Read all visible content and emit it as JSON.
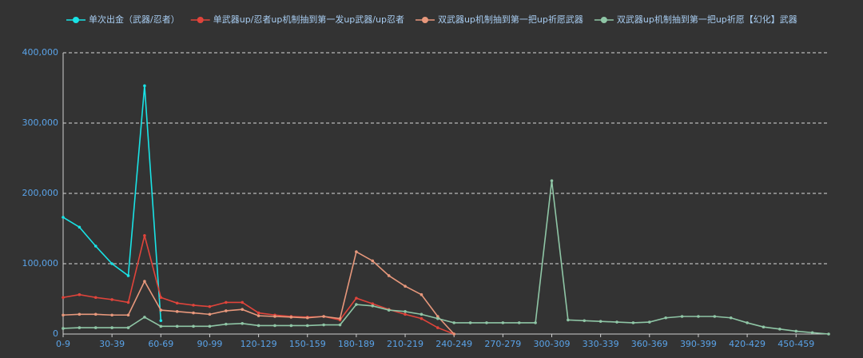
{
  "chart_data": {
    "type": "line",
    "categories": [
      "0-9",
      null,
      null,
      "30-39",
      null,
      null,
      "60-69",
      null,
      null,
      "90-99",
      null,
      null,
      "120-129",
      null,
      null,
      "150-159",
      null,
      null,
      "180-189",
      null,
      null,
      "210-219",
      null,
      null,
      "240-249",
      null,
      null,
      "270-279",
      null,
      null,
      "300-309",
      null,
      null,
      "330-339",
      null,
      null,
      "360-369",
      null,
      null,
      "390-399",
      null,
      null,
      "420-429",
      null,
      null,
      "450-459",
      null,
      null
    ],
    "series": [
      {
        "name": "单次出金（武器/忍者）",
        "color": "#19e3e6",
        "values": [
          166000,
          152000,
          125000,
          100000,
          83000,
          353000,
          19000,
          null,
          null,
          null,
          null,
          null,
          null,
          null,
          null,
          null,
          null,
          null,
          null,
          null,
          null,
          null,
          null,
          null,
          null,
          null,
          null,
          null,
          null,
          null,
          null,
          null,
          null,
          null,
          null,
          null,
          null,
          null,
          null,
          null,
          null,
          null,
          null,
          null,
          null,
          null,
          null,
          null
        ]
      },
      {
        "name": "单武器up/忍者up机制抽到第一发up武器/up忍者",
        "color": "#e0443b",
        "values": [
          52000,
          56000,
          52000,
          49000,
          45000,
          140000,
          52000,
          44000,
          41000,
          39000,
          45000,
          45000,
          30000,
          27000,
          25000,
          24000,
          25000,
          20000,
          51000,
          43000,
          35000,
          28000,
          22000,
          9000,
          0,
          null,
          null,
          null,
          null,
          null,
          null,
          null,
          null,
          null,
          null,
          null,
          null,
          null,
          null,
          null,
          null,
          null,
          null,
          null,
          null,
          null,
          null,
          null
        ]
      },
      {
        "name": "双武器up机制抽到第一把up祈愿武器",
        "color": "#e8987c",
        "values": [
          27000,
          28000,
          28000,
          27000,
          27000,
          75000,
          34000,
          32000,
          30000,
          28000,
          33000,
          35000,
          26000,
          25000,
          24000,
          23000,
          25000,
          22000,
          117000,
          104000,
          83000,
          68000,
          56000,
          25000,
          0,
          null,
          null,
          null,
          null,
          null,
          null,
          null,
          null,
          null,
          null,
          null,
          null,
          null,
          null,
          null,
          null,
          null,
          null,
          null,
          null,
          null,
          null,
          null
        ]
      },
      {
        "name": "双武器up机制抽到第一把up祈愿【幻化】武器",
        "color": "#8fc6a6",
        "values": [
          8000,
          9000,
          9000,
          9000,
          9000,
          24000,
          11000,
          11000,
          11000,
          11000,
          14000,
          15000,
          12000,
          12000,
          12000,
          12000,
          13000,
          13000,
          42000,
          40000,
          34000,
          32000,
          28000,
          22000,
          16000,
          16000,
          16000,
          16000,
          16000,
          16000,
          218000,
          20000,
          19000,
          18000,
          17000,
          16000,
          17000,
          23000,
          25000,
          25000,
          25000,
          23000,
          16000,
          10000,
          7000,
          4000,
          2000,
          0
        ]
      }
    ],
    "ylim": [
      0,
      400000
    ],
    "yticks": [
      0,
      {
        "value": 100000,
        "label": "100,000"
      },
      {
        "value": 200000,
        "label": "200,000"
      },
      {
        "value": 300000,
        "label": "300,000"
      },
      {
        "value": 400000,
        "label": "400,000"
      }
    ],
    "grid": true
  }
}
